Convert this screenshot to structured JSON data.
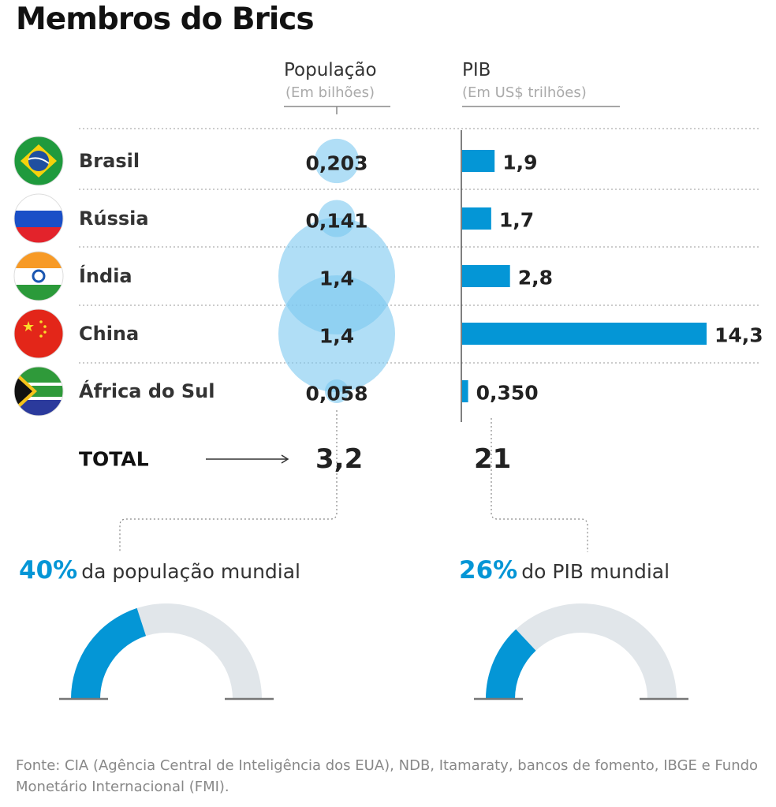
{
  "title": "Membros do Brics",
  "colors": {
    "accent": "#0496d6",
    "bubble": "#7cc8f0",
    "gauge_bg": "#e1e6ea"
  },
  "chart_data": {
    "type": "bar",
    "categories": [
      "Brasil",
      "Rússia",
      "Índia",
      "China",
      "África do Sul"
    ],
    "flags": [
      "brazil-flag-icon",
      "russia-flag-icon",
      "india-flag-icon",
      "china-flag-icon",
      "south-africa-flag-icon"
    ],
    "population": {
      "label": "População",
      "unit": "(Em bilhões)",
      "values": [
        0.203,
        0.141,
        1.4,
        1.4,
        0.058
      ],
      "labels": [
        "0,203",
        "0,141",
        "1,4",
        "1,4",
        "0,058"
      ],
      "encoding": "bubble"
    },
    "gdp": {
      "label": "PIB",
      "unit": "(Em US$ trilhões)",
      "values": [
        1.9,
        1.7,
        2.8,
        14.3,
        0.35
      ],
      "labels": [
        "1,9",
        "1,7",
        "2,8",
        "14,3",
        "0,350"
      ],
      "encoding": "bar"
    },
    "total": {
      "label": "TOTAL",
      "population": "3,2",
      "gdp": "21"
    },
    "gauges": [
      {
        "percent": 40,
        "label": "40%",
        "text": "da população mundial"
      },
      {
        "percent": 26,
        "label": "26%",
        "text": "do PIB mundial"
      }
    ]
  },
  "source": "Fonte: CIA (Agência Central de Inteligência dos EUA), NDB, Itamaraty, bancos de fomento, IBGE e Fundo Monetário Internacional (FMI)."
}
